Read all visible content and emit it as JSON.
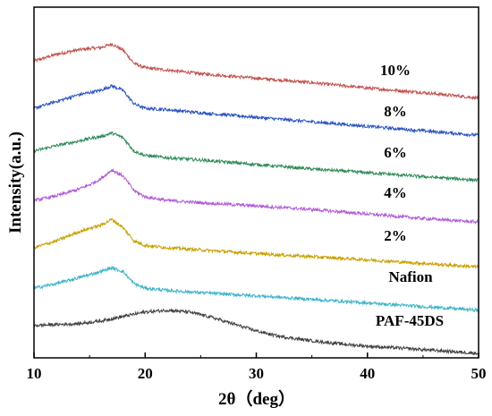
{
  "chart_data": {
    "type": "line",
    "xlabel": "2θ（deg）",
    "ylabel": "Intensity(a.u.)",
    "xlim": [
      10,
      50
    ],
    "xticks": [
      10,
      20,
      30,
      40,
      50
    ],
    "yticks": [],
    "grid": false,
    "legend": "inline labels at right",
    "series": [
      {
        "name": "10%",
        "color": "#c0504d",
        "x": [
          10,
          12,
          14,
          15,
          16,
          17,
          18,
          19,
          20,
          22,
          25,
          30,
          35,
          40,
          45,
          50
        ],
        "y": [
          6.6,
          6.75,
          6.85,
          6.88,
          6.9,
          6.98,
          6.85,
          6.55,
          6.45,
          6.4,
          6.32,
          6.22,
          6.12,
          6.0,
          5.9,
          5.78
        ]
      },
      {
        "name": "8%",
        "color": "#2a52be",
        "x": [
          10,
          12,
          14,
          15,
          16,
          17,
          18,
          19,
          20,
          22,
          25,
          30,
          35,
          40,
          45,
          50
        ],
        "y": [
          5.55,
          5.7,
          5.85,
          5.9,
          5.95,
          6.05,
          5.95,
          5.65,
          5.55,
          5.52,
          5.45,
          5.35,
          5.25,
          5.15,
          5.05,
          4.95
        ]
      },
      {
        "name": "6%",
        "color": "#2e8b57",
        "x": [
          10,
          12,
          14,
          15,
          16,
          17,
          18,
          19,
          20,
          22,
          25,
          30,
          35,
          40,
          45,
          50
        ],
        "y": [
          4.6,
          4.72,
          4.82,
          4.88,
          4.92,
          5.0,
          4.9,
          4.6,
          4.5,
          4.45,
          4.4,
          4.3,
          4.2,
          4.12,
          4.03,
          3.95
        ]
      },
      {
        "name": "4%",
        "color": "#b05bd6",
        "x": [
          10,
          12,
          14,
          15,
          16,
          17,
          18,
          19,
          20,
          22,
          25,
          30,
          35,
          40,
          45,
          50
        ],
        "y": [
          3.5,
          3.6,
          3.75,
          3.85,
          3.98,
          4.18,
          4.05,
          3.72,
          3.58,
          3.5,
          3.45,
          3.38,
          3.3,
          3.2,
          3.1,
          3.02
        ]
      },
      {
        "name": "2%",
        "color": "#c8a000",
        "x": [
          10,
          12,
          14,
          15,
          16,
          17,
          18,
          19,
          20,
          22,
          25,
          30,
          35,
          40,
          45,
          50
        ],
        "y": [
          2.45,
          2.6,
          2.8,
          2.88,
          2.95,
          3.08,
          2.9,
          2.6,
          2.5,
          2.45,
          2.4,
          2.32,
          2.25,
          2.18,
          2.1,
          2.02
        ]
      },
      {
        "name": "Nafion",
        "color": "#3cb4c8",
        "x": [
          10,
          12,
          14,
          15,
          16,
          17,
          18,
          19,
          20,
          22,
          25,
          30,
          35,
          40,
          45,
          50
        ],
        "y": [
          1.55,
          1.65,
          1.78,
          1.85,
          1.92,
          2.0,
          1.92,
          1.65,
          1.55,
          1.5,
          1.45,
          1.38,
          1.3,
          1.22,
          1.14,
          1.06
        ]
      },
      {
        "name": "PAF-45DS",
        "color": "#404040",
        "x": [
          10,
          12,
          14,
          16,
          18,
          20,
          22,
          24,
          26,
          28,
          30,
          32,
          35,
          38,
          40,
          44,
          47,
          50
        ],
        "y": [
          0.72,
          0.74,
          0.76,
          0.82,
          0.92,
          1.02,
          1.06,
          1.02,
          0.9,
          0.75,
          0.6,
          0.48,
          0.38,
          0.3,
          0.26,
          0.2,
          0.15,
          0.1
        ]
      }
    ]
  }
}
